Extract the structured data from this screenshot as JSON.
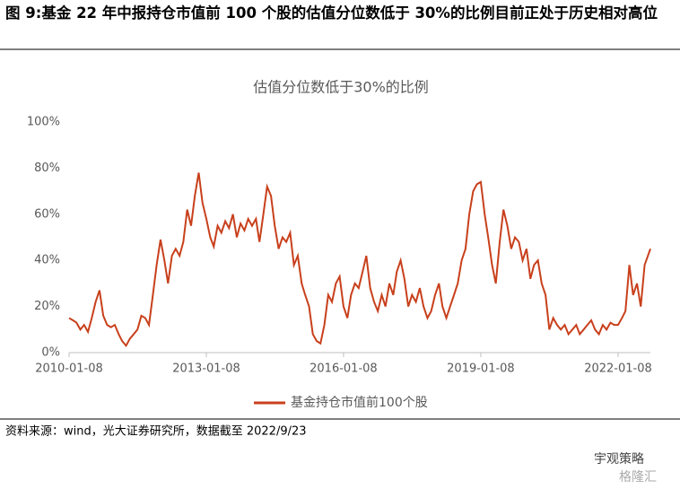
{
  "header": {
    "title": "图 9:基金 22 年中报持仓市值前 100 个股的估值分位数低于 30%的比例目前正处于历史相对高位"
  },
  "chart_data": {
    "type": "line",
    "title": "估值分位数低于30%的比例",
    "x": [
      "2010-01-08",
      "2010-02-08",
      "2010-03-08",
      "2010-04-08",
      "2010-05-08",
      "2010-06-08",
      "2010-07-08",
      "2010-08-08",
      "2010-09-08",
      "2010-10-08",
      "2010-11-08",
      "2010-12-08",
      "2011-01-08",
      "2011-02-08",
      "2011-03-08",
      "2011-04-08",
      "2011-05-08",
      "2011-06-08",
      "2011-07-08",
      "2011-08-08",
      "2011-09-08",
      "2011-10-08",
      "2011-11-08",
      "2011-12-08",
      "2012-01-08",
      "2012-02-08",
      "2012-03-08",
      "2012-04-08",
      "2012-05-08",
      "2012-06-08",
      "2012-07-08",
      "2012-08-08",
      "2012-09-08",
      "2012-10-08",
      "2012-11-08",
      "2012-12-08",
      "2013-01-08",
      "2013-02-08",
      "2013-03-08",
      "2013-04-08",
      "2013-05-08",
      "2013-06-08",
      "2013-07-08",
      "2013-08-08",
      "2013-09-08",
      "2013-10-08",
      "2013-11-08",
      "2013-12-08",
      "2014-01-08",
      "2014-02-08",
      "2014-03-08",
      "2014-04-08",
      "2014-05-08",
      "2014-06-08",
      "2014-07-08",
      "2014-08-08",
      "2014-09-08",
      "2014-10-08",
      "2014-11-08",
      "2014-12-08",
      "2015-01-08",
      "2015-02-08",
      "2015-03-08",
      "2015-04-08",
      "2015-05-08",
      "2015-06-08",
      "2015-07-08",
      "2015-08-08",
      "2015-09-08",
      "2015-10-08",
      "2015-11-08",
      "2015-12-08",
      "2016-01-08",
      "2016-02-08",
      "2016-03-08",
      "2016-04-08",
      "2016-05-08",
      "2016-06-08",
      "2016-07-08",
      "2016-08-08",
      "2016-09-08",
      "2016-10-08",
      "2016-11-08",
      "2016-12-08",
      "2017-01-08",
      "2017-02-08",
      "2017-03-08",
      "2017-04-08",
      "2017-05-08",
      "2017-06-08",
      "2017-07-08",
      "2017-08-08",
      "2017-09-08",
      "2017-10-08",
      "2017-11-08",
      "2017-12-08",
      "2018-01-08",
      "2018-02-08",
      "2018-03-08",
      "2018-04-08",
      "2018-05-08",
      "2018-06-08",
      "2018-07-08",
      "2018-08-08",
      "2018-09-08",
      "2018-10-08",
      "2018-11-08",
      "2018-12-08",
      "2019-01-08",
      "2019-02-08",
      "2019-03-08",
      "2019-04-08",
      "2019-05-08",
      "2019-06-08",
      "2019-07-08",
      "2019-08-08",
      "2019-09-08",
      "2019-10-08",
      "2019-11-08",
      "2019-12-08",
      "2020-01-08",
      "2020-02-08",
      "2020-03-08",
      "2020-04-08",
      "2020-05-08",
      "2020-06-08",
      "2020-07-08",
      "2020-08-08",
      "2020-09-08",
      "2020-10-08",
      "2020-11-08",
      "2020-12-08",
      "2021-01-08",
      "2021-02-08",
      "2021-03-08",
      "2021-04-08",
      "2021-05-08",
      "2021-06-08",
      "2021-07-08",
      "2021-08-08",
      "2021-09-08",
      "2021-10-08",
      "2021-11-08",
      "2021-12-08",
      "2022-01-08",
      "2022-02-08",
      "2022-03-08",
      "2022-04-08",
      "2022-05-08",
      "2022-06-08",
      "2022-07-08",
      "2022-08-08",
      "2022-09-23"
    ],
    "series": [
      {
        "name": "基金持仓市值前100个股",
        "color": "#c8401c",
        "values": [
          15,
          14,
          13,
          10,
          12,
          9,
          15,
          22,
          27,
          16,
          12,
          11,
          12,
          8,
          5,
          3,
          6,
          8,
          10,
          16,
          15,
          12,
          25,
          38,
          49,
          40,
          30,
          42,
          45,
          42,
          48,
          62,
          55,
          68,
          78,
          65,
          58,
          50,
          46,
          55,
          52,
          57,
          54,
          60,
          50,
          56,
          53,
          58,
          55,
          58,
          48,
          60,
          72,
          68,
          55,
          45,
          50,
          48,
          52,
          38,
          42,
          30,
          25,
          20,
          8,
          5,
          4,
          12,
          25,
          22,
          30,
          33,
          20,
          15,
          25,
          30,
          28,
          35,
          42,
          28,
          22,
          18,
          25,
          20,
          30,
          25,
          35,
          40,
          32,
          20,
          25,
          22,
          28,
          20,
          15,
          18,
          25,
          30,
          20,
          15,
          20,
          25,
          30,
          40,
          45,
          60,
          70,
          73,
          74,
          60,
          50,
          38,
          30,
          48,
          62,
          55,
          45,
          50,
          48,
          40,
          45,
          32,
          38,
          40,
          30,
          25,
          10,
          15,
          12,
          10,
          12,
          8,
          10,
          12,
          8,
          10,
          12,
          14,
          10,
          8,
          12,
          10,
          13,
          12,
          12,
          15,
          18,
          38,
          25,
          30,
          20,
          38,
          45
        ]
      }
    ],
    "xlim": [
      "2010-01-08",
      "2022-09-23"
    ],
    "xticks": [
      "2010-01-08",
      "2013-01-08",
      "2016-01-08",
      "2019-01-08",
      "2022-01-08"
    ],
    "ylim": [
      0,
      100
    ],
    "yticks": [
      {
        "value": 0,
        "label": "0%"
      },
      {
        "value": 20,
        "label": "20%"
      },
      {
        "value": 40,
        "label": "40%"
      },
      {
        "value": 60,
        "label": "60%"
      },
      {
        "value": 80,
        "label": "80%"
      },
      {
        "value": 100,
        "label": "100%"
      }
    ],
    "grid": false,
    "legend": "bottom"
  },
  "footer": {
    "source": "资料来源：wind，光大证券研究所，数据截至 2022/9/23",
    "watermark": "宇观策略",
    "watermark2": "格隆汇"
  }
}
